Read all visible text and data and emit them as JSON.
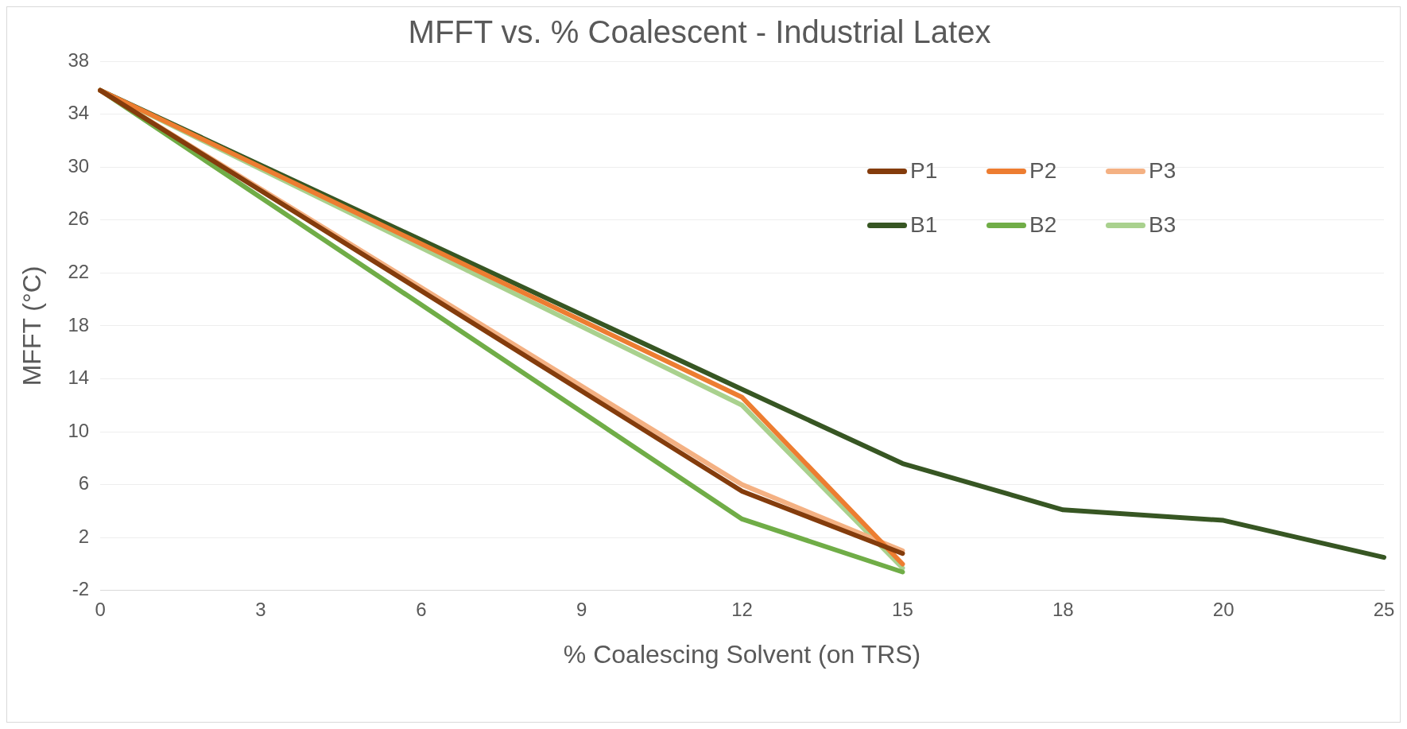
{
  "chart_data": {
    "type": "line",
    "title": "MFFT vs. % Coalescent - Industrial Latex",
    "xlabel": "% Coalescing Solvent (on TRS)",
    "ylabel": "MFFT (°C)",
    "categories": [
      "0",
      "3",
      "6",
      "9",
      "12",
      "15",
      "18",
      "20",
      "25"
    ],
    "series": [
      {
        "name": "P1",
        "color": "#843c0c",
        "values": [
          35.8,
          null,
          null,
          null,
          5.5,
          0.8,
          null,
          null,
          null
        ]
      },
      {
        "name": "P2",
        "color": "#ed7d31",
        "values": [
          35.8,
          null,
          null,
          null,
          12.6,
          0,
          null,
          null,
          null
        ]
      },
      {
        "name": "P3",
        "color": "#f4b183",
        "values": [
          35.8,
          null,
          null,
          null,
          6,
          1,
          null,
          null,
          null
        ]
      },
      {
        "name": "B1",
        "color": "#375623",
        "values": [
          35.8,
          null,
          null,
          null,
          13.2,
          7.6,
          4.1,
          3.3,
          0.5
        ]
      },
      {
        "name": "B2",
        "color": "#70ad47",
        "values": [
          35.8,
          null,
          null,
          null,
          3.4,
          -0.6,
          null,
          null,
          null
        ]
      },
      {
        "name": "B3",
        "color": "#a9d18e",
        "values": [
          35.8,
          null,
          null,
          null,
          12,
          -0.3,
          null,
          null,
          null
        ]
      }
    ],
    "ylim": [
      -2,
      38
    ],
    "yticks": [
      -2,
      2,
      6,
      10,
      14,
      18,
      22,
      26,
      30,
      34,
      38
    ],
    "grid": "y",
    "legend": "top right"
  }
}
